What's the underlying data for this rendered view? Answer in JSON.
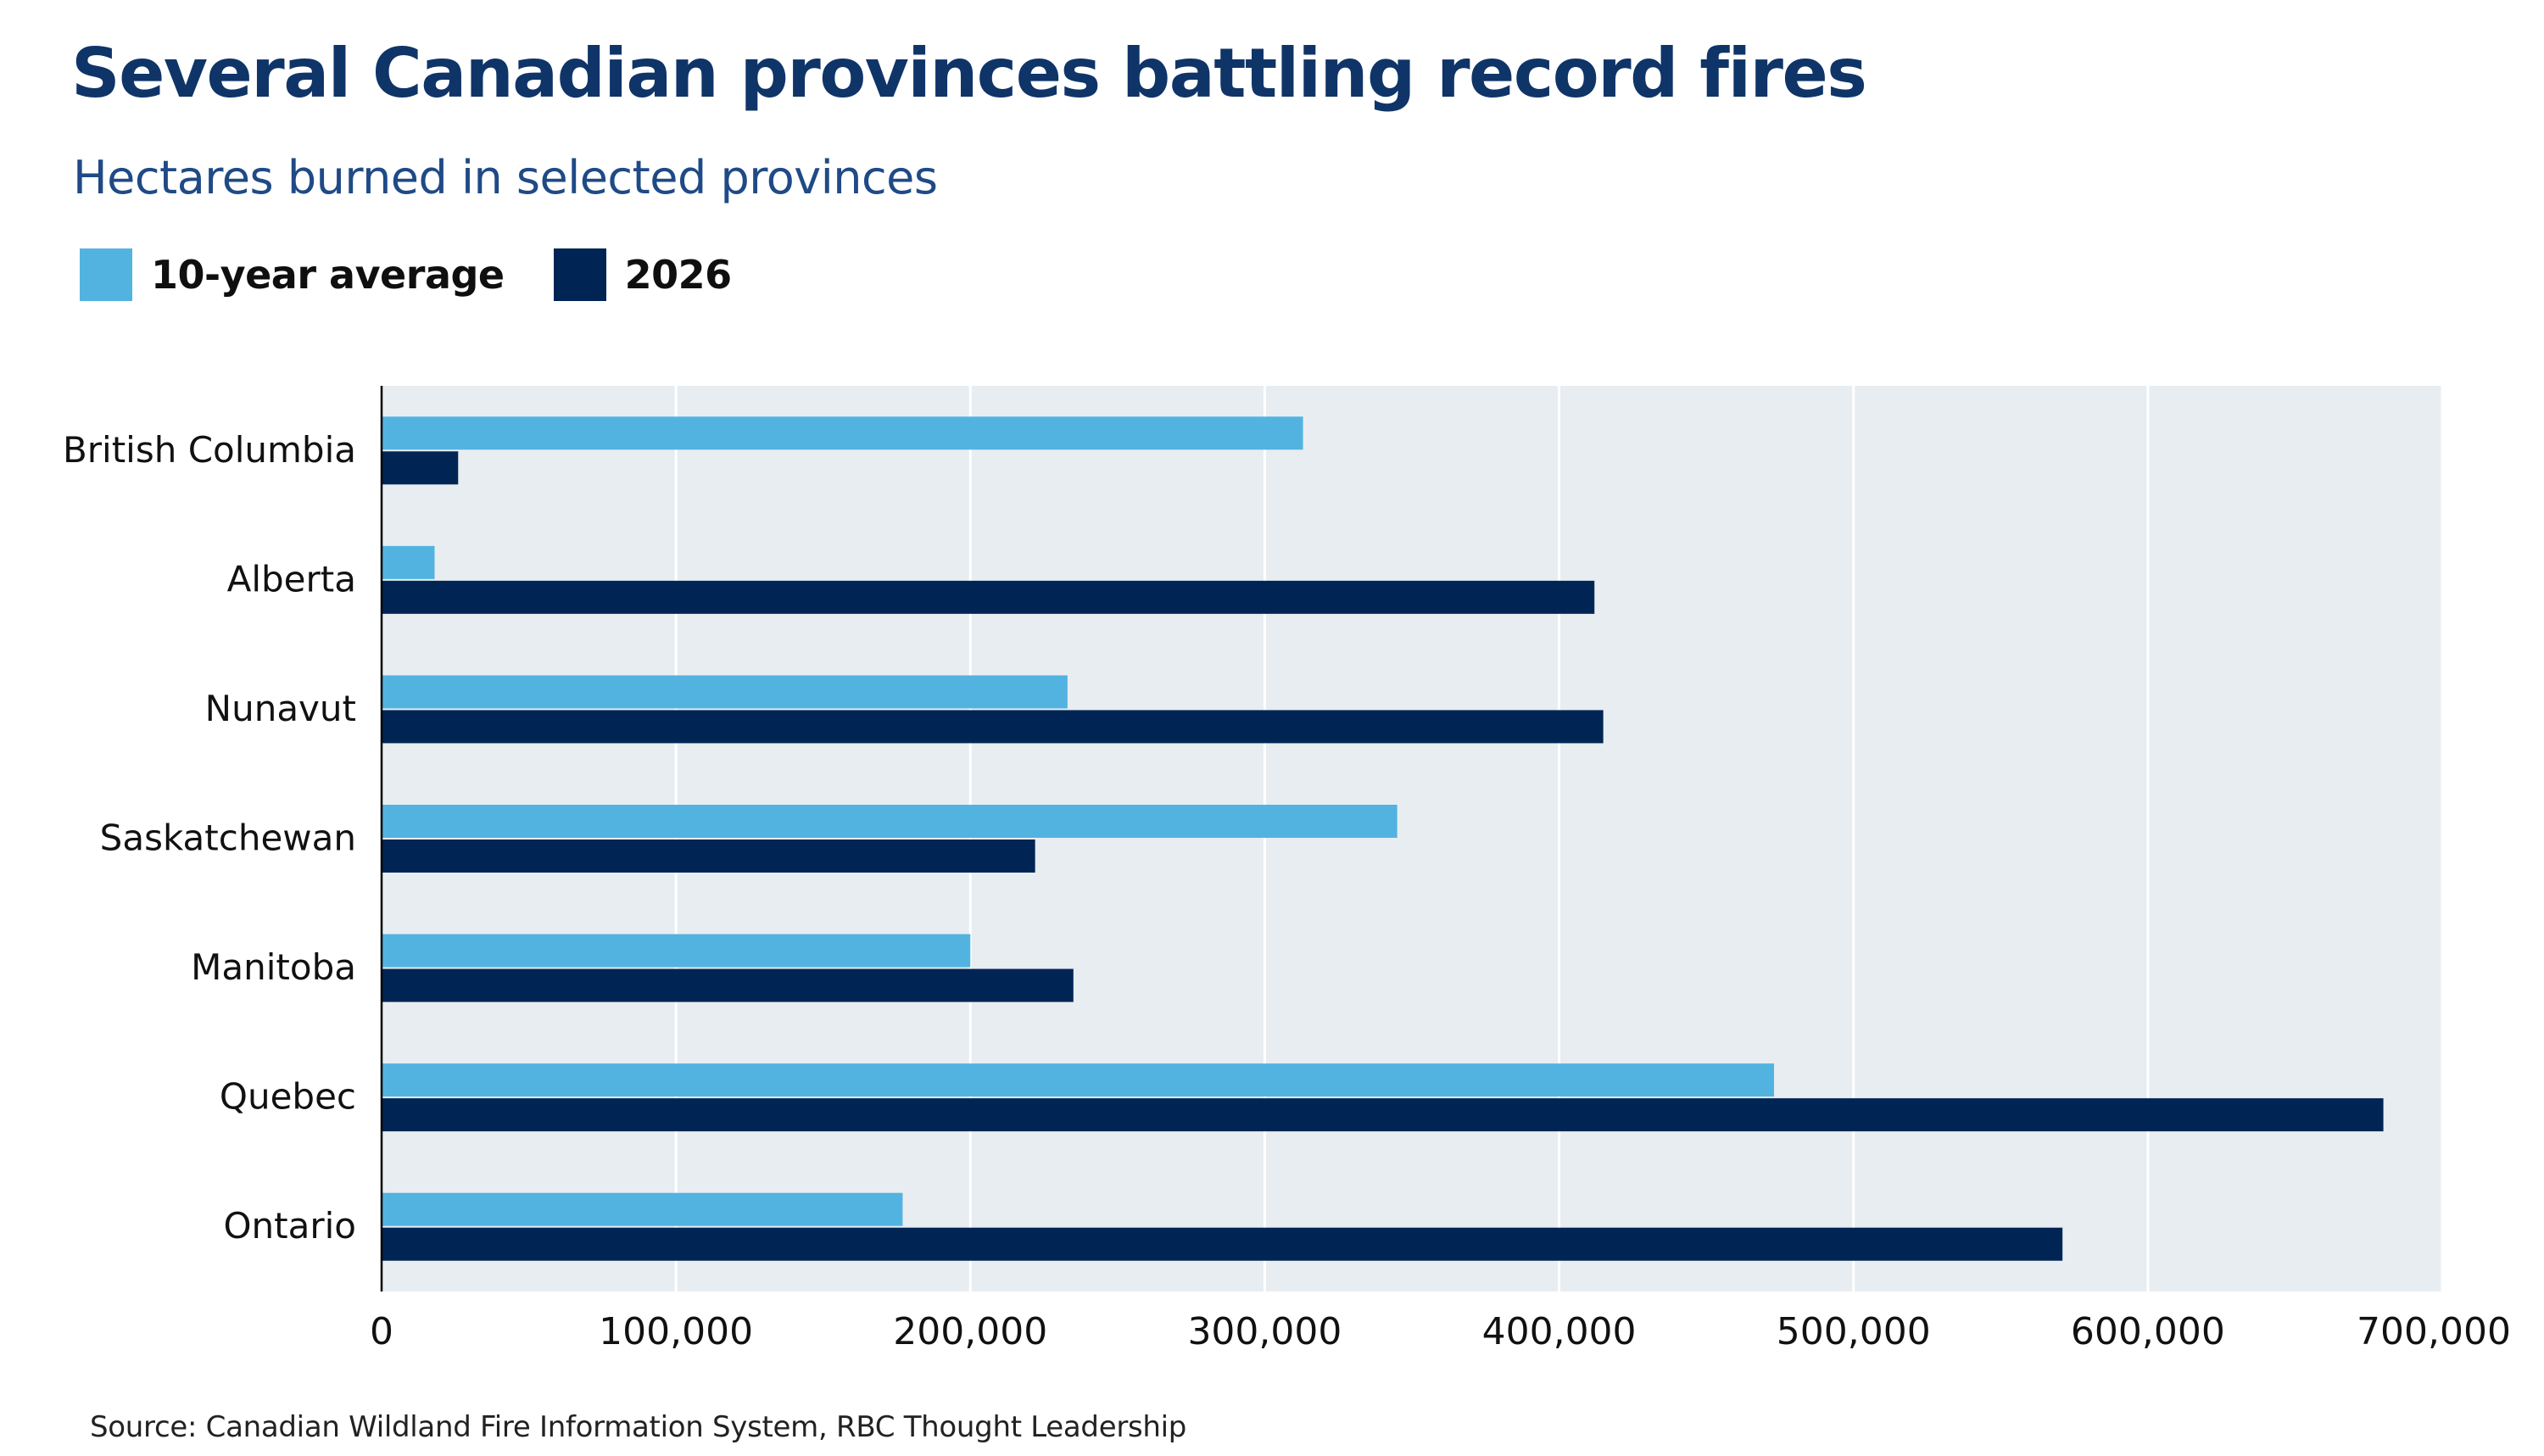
{
  "chart_data": {
    "type": "bar",
    "orientation": "horizontal",
    "title": "Several Canadian provinces battling record fires",
    "subtitle": "Hectares burned in selected provinces",
    "categories": [
      "British Columbia",
      "Alberta",
      "Nunavut",
      "Saskatchewan",
      "Manitoba",
      "Quebec",
      "Ontario"
    ],
    "series": [
      {
        "name": "10-year average",
        "color": "#52b3e0",
        "values": [
          313000,
          18000,
          233000,
          345000,
          200000,
          473000,
          177000
        ]
      },
      {
        "name": "2026",
        "color": "#002554",
        "values": [
          26000,
          412000,
          415000,
          222000,
          235000,
          680000,
          571000
        ]
      }
    ],
    "xlim": [
      0,
      700000
    ],
    "xticks": [
      0,
      100000,
      200000,
      300000,
      400000,
      500000,
      600000,
      700000
    ],
    "xtick_labels": [
      "0",
      "100,000",
      "200,000",
      "300,000",
      "400,000",
      "500,000",
      "600,000",
      "700,000"
    ],
    "xlabel": "",
    "ylabel": "",
    "grid": true,
    "legend_position": "top-left",
    "plot_background": "#e8edf1",
    "source": "Source: Canadian Wildland Fire Information System, RBC Thought Leadership"
  }
}
